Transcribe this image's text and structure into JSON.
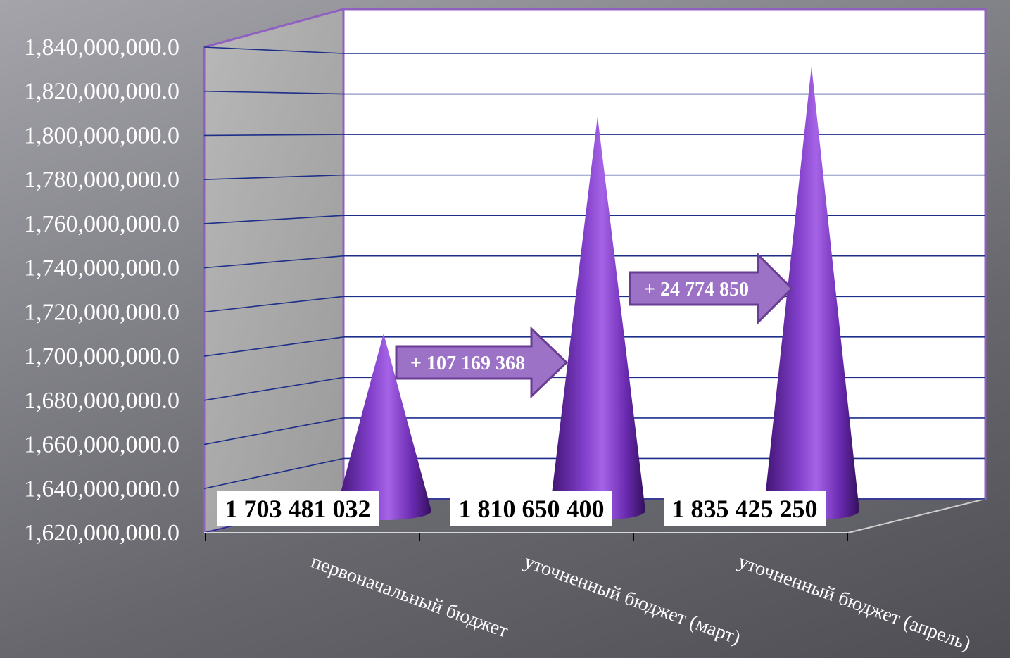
{
  "chart_data": {
    "type": "bar",
    "shape": "cone",
    "categories": [
      "первоначальный бюджет",
      "уточненный бюджет (март)",
      "уточненный бюджет (апрель)"
    ],
    "values": [
      1703481032,
      1810650400,
      1835425250
    ],
    "value_labels": [
      "1 703 481 032",
      "1 810 650 400",
      "1 835 425 250"
    ],
    "y_ticks": [
      "1,620,000,000.0",
      "1,640,000,000.0",
      "1,660,000,000.0",
      "1,680,000,000.0",
      "1,700,000,000.0",
      "1,720,000,000.0",
      "1,740,000,000.0",
      "1,760,000,000.0",
      "1,780,000,000.0",
      "1,800,000,000.0",
      "1,820,000,000.0",
      "1,840,000,000.0"
    ],
    "ylim": [
      1620000000,
      1840000000
    ],
    "grid": true,
    "annotations": [
      {
        "text": "+ 107 169 368",
        "from": 0,
        "to": 1
      },
      {
        "text": "+ 24 774 850",
        "from": 1,
        "to": 2
      }
    ],
    "colors": {
      "cone": "#7a35c0",
      "arrow": "#9b72c6",
      "arrow_border": "#6a3d95",
      "wall": "#a8a8a8",
      "frame": "#9060c0",
      "grid": "#1e2f8a"
    }
  }
}
